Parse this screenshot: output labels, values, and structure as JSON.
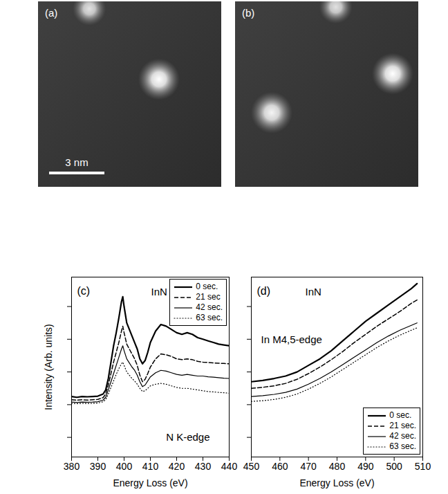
{
  "images": [
    {
      "panel_label": "(a)",
      "scale_bar": "3 nm"
    },
    {
      "panel_label": "(b)"
    }
  ],
  "chart_data": [
    {
      "type": "line",
      "panel_label": "(c)",
      "x_label": "Energy Loss (eV)",
      "y_label": "Intensity (Arb. units)",
      "annotations": [
        "InN",
        "N K-edge"
      ],
      "xlim": [
        380,
        440
      ],
      "xticks": [
        380,
        390,
        400,
        410,
        420,
        430,
        440
      ],
      "ylim": [
        0,
        110
      ],
      "yticks": [
        12,
        32,
        52,
        72,
        92
      ],
      "tick_labels": "x",
      "legend": "top-right",
      "x": [
        380,
        382,
        384,
        386,
        388,
        390,
        392,
        393,
        394,
        395,
        396,
        397,
        398,
        399,
        399.5,
        400,
        401,
        402,
        403,
        404,
        405,
        406,
        407,
        408,
        409,
        410,
        412,
        414,
        416,
        418,
        420,
        422,
        424,
        426,
        428,
        430,
        432,
        434,
        436,
        438,
        440
      ],
      "series": [
        {
          "name": "0 sec.",
          "color": "#000000",
          "line_style": "solid",
          "values": [
            37,
            36.5,
            37,
            36.8,
            37,
            37.2,
            38.5,
            41,
            48,
            58,
            68,
            76,
            85,
            95,
            98,
            92,
            82,
            78,
            74,
            70,
            66,
            60,
            57,
            59,
            64,
            70,
            77,
            81,
            80,
            78,
            76,
            75,
            76,
            75,
            73,
            72,
            71,
            70,
            69,
            68.5,
            68
          ]
        },
        {
          "name": "21 sec",
          "color": "#000000",
          "line_style": "dashed",
          "values": [
            35,
            34.7,
            35,
            34.8,
            35,
            35.2,
            36.3,
            38.5,
            44,
            51,
            58,
            64,
            70,
            77,
            80,
            76,
            69,
            66,
            63,
            60,
            56,
            50,
            46,
            47.5,
            51,
            55,
            60,
            63,
            62.5,
            61.5,
            60,
            59.5,
            60,
            59.5,
            58.5,
            58,
            57.8,
            57.5,
            57.3,
            57.2,
            57
          ]
        },
        {
          "name": "42 sec.",
          "color": "#000000",
          "line_style": "solid",
          "values": [
            33.6,
            33.4,
            33.6,
            33.5,
            33.6,
            33.8,
            34.8,
            36.5,
            41,
            46,
            51,
            56,
            61,
            66,
            68,
            65,
            60,
            57.5,
            55,
            53,
            50,
            46,
            43,
            44,
            46.5,
            49,
            51.5,
            53,
            52.5,
            51.5,
            50.5,
            50,
            50.5,
            50,
            49.5,
            49.5,
            49,
            48.8,
            48.5,
            48.2,
            48
          ]
        },
        {
          "name": "63 sec.",
          "color": "#000000",
          "line_style": "dotted",
          "values": [
            32.8,
            32.6,
            32.8,
            32.7,
            32.8,
            33,
            33.8,
            35,
            38.5,
            42.5,
            46.5,
            50.5,
            54,
            57,
            58,
            56,
            52,
            50,
            48,
            46.5,
            44.5,
            42,
            40,
            40.5,
            42,
            43.5,
            44.5,
            45,
            44.5,
            43.5,
            42.5,
            42,
            42,
            41.5,
            41,
            40.5,
            40,
            39.8,
            39.5,
            39.3,
            39
          ]
        }
      ]
    },
    {
      "type": "line",
      "panel_label": "(d)",
      "x_label": "Energy Loss (eV)",
      "annotations": [
        "InN",
        "In M4,5-edge"
      ],
      "xlim": [
        450,
        510
      ],
      "xticks": [
        450,
        460,
        470,
        480,
        490,
        500,
        510
      ],
      "ylim": [
        0,
        110
      ],
      "yticks": [
        12,
        32,
        52,
        72,
        92
      ],
      "tick_labels": "x",
      "legend": "bottom-right",
      "x": [
        450,
        454,
        458,
        462,
        466,
        470,
        474,
        478,
        482,
        486,
        490,
        494,
        498,
        502,
        506,
        508
      ],
      "series": [
        {
          "name": "0 sec.",
          "color": "#000000",
          "line_style": "solid",
          "values": [
            46,
            46.8,
            48,
            49.5,
            52,
            56,
            60,
            65,
            71,
            77,
            83,
            88,
            93,
            98,
            103,
            106
          ]
        },
        {
          "name": "21 sec.",
          "color": "#000000",
          "line_style": "dashed",
          "values": [
            42,
            42.6,
            43.5,
            45,
            47.5,
            51,
            55,
            59.5,
            64.5,
            70,
            75,
            80,
            84.5,
            89,
            94,
            96
          ]
        },
        {
          "name": "42 sec.",
          "color": "#000000",
          "line_style": "solid",
          "values": [
            37,
            37.5,
            38.3,
            39.5,
            41.5,
            44.5,
            48,
            52,
            56.5,
            61,
            65.5,
            70,
            74,
            77.5,
            80.5,
            82
          ]
        },
        {
          "name": "63 sec.",
          "color": "#000000",
          "line_style": "dotted",
          "values": [
            34,
            34.4,
            35.2,
            36.5,
            38.5,
            41.5,
            45,
            49,
            53.5,
            58,
            62.5,
            67,
            71,
            74.5,
            77.5,
            79
          ]
        }
      ]
    }
  ]
}
